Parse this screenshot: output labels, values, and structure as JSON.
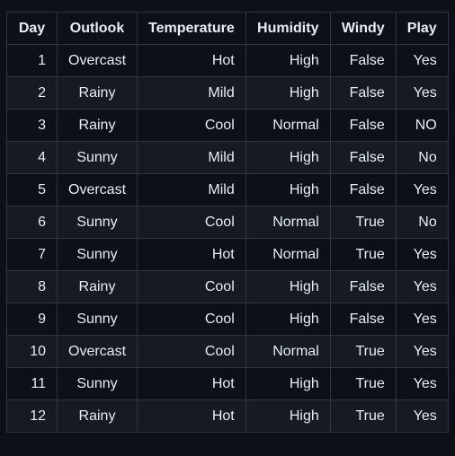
{
  "table": {
    "headers": [
      "Day",
      "Outlook",
      "Temperature",
      "Humidity",
      "Windy",
      "Play"
    ],
    "rows": [
      [
        "1",
        "Overcast",
        "Hot",
        "High",
        "False",
        "Yes"
      ],
      [
        "2",
        "Rainy",
        "Mild",
        "High",
        "False",
        "Yes"
      ],
      [
        "3",
        "Rainy",
        "Cool",
        "Normal",
        "False",
        "NO"
      ],
      [
        "4",
        "Sunny",
        "Mild",
        "High",
        "False",
        "No"
      ],
      [
        "5",
        "Overcast",
        "Mild",
        "High",
        "False",
        "Yes"
      ],
      [
        "6",
        "Sunny",
        "Cool",
        "Normal",
        "True",
        "No"
      ],
      [
        "7",
        "Sunny",
        "Hot",
        "Normal",
        "True",
        "Yes"
      ],
      [
        "8",
        "Rainy",
        "Cool",
        "High",
        "False",
        "Yes"
      ],
      [
        "9",
        "Sunny",
        "Cool",
        "High",
        "False",
        "Yes"
      ],
      [
        "10",
        "Overcast",
        "Cool",
        "Normal",
        "True",
        "Yes"
      ],
      [
        "11",
        "Sunny",
        "Hot",
        "High",
        "True",
        "Yes"
      ],
      [
        "12",
        "Rainy",
        "Hot",
        "High",
        "True",
        "Yes"
      ]
    ]
  },
  "colors": {
    "background": "#0d1117",
    "row_alt": "#161b22",
    "border": "#30363d",
    "text": "#e6edf3"
  }
}
